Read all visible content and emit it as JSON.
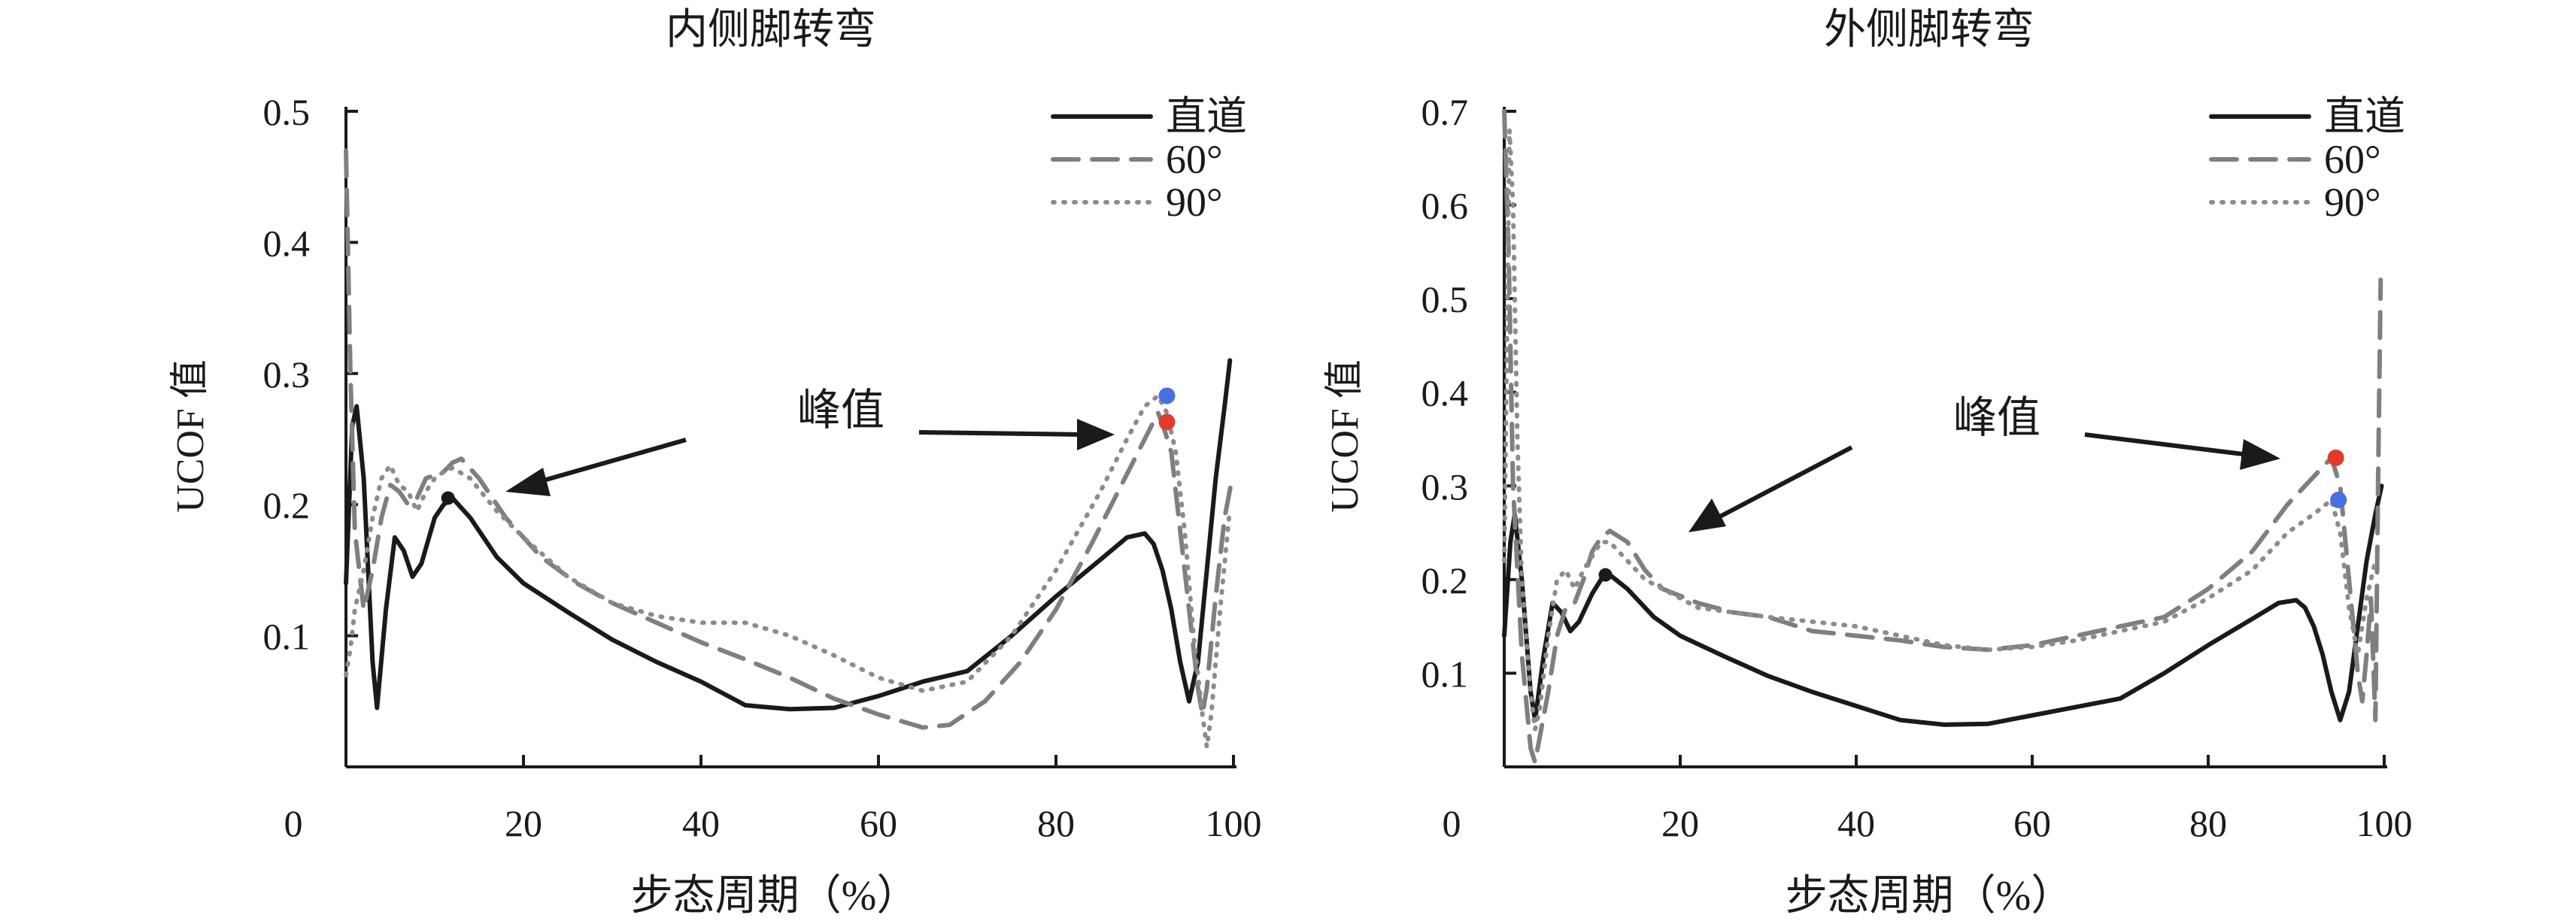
{
  "chart_data": [
    {
      "type": "line",
      "title": "内侧脚转弯",
      "xlabel": "步态周期（%）",
      "ylabel": "UCOF 值",
      "xlim": [
        0,
        100
      ],
      "ylim": [
        0,
        0.5
      ],
      "x_ticks": [
        "0",
        "20",
        "40",
        "60",
        "80",
        "100"
      ],
      "y_ticks": [
        "0.1",
        "0.2",
        "0.3",
        "0.4",
        "0.5"
      ],
      "legend_position": "top-right",
      "annotation": "峰值",
      "series": [
        {
          "name": "直道",
          "style": "solid",
          "color": "#1a1a1a",
          "points": [
            [
              0,
              0.14
            ],
            [
              0.7,
              0.26
            ],
            [
              1.2,
              0.275
            ],
            [
              2,
              0.22
            ],
            [
              3,
              0.08
            ],
            [
              3.5,
              0.045
            ],
            [
              4.5,
              0.12
            ],
            [
              5.5,
              0.175
            ],
            [
              6.5,
              0.165
            ],
            [
              7.5,
              0.145
            ],
            [
              8.5,
              0.155
            ],
            [
              10,
              0.19
            ],
            [
              11,
              0.2
            ],
            [
              12,
              0.205
            ],
            [
              14,
              0.19
            ],
            [
              17,
              0.16
            ],
            [
              20,
              0.14
            ],
            [
              25,
              0.118
            ],
            [
              30,
              0.097
            ],
            [
              35,
              0.08
            ],
            [
              40,
              0.065
            ],
            [
              45,
              0.047
            ],
            [
              50,
              0.044
            ],
            [
              55,
              0.045
            ],
            [
              60,
              0.054
            ],
            [
              65,
              0.065
            ],
            [
              70,
              0.073
            ],
            [
              75,
              0.1
            ],
            [
              80,
              0.13
            ],
            [
              85,
              0.158
            ],
            [
              88,
              0.175
            ],
            [
              90,
              0.178
            ],
            [
              91,
              0.17
            ],
            [
              92,
              0.15
            ],
            [
              93,
              0.12
            ],
            [
              94,
              0.08
            ],
            [
              95,
              0.05
            ],
            [
              96,
              0.08
            ],
            [
              97,
              0.15
            ],
            [
              98,
              0.22
            ],
            [
              99,
              0.275
            ],
            [
              99.6,
              0.31
            ]
          ]
        },
        {
          "name": "60°",
          "style": "dashed",
          "color": "#7f7f7f",
          "points": [
            [
              0,
              0.47
            ],
            [
              0.5,
              0.3
            ],
            [
              1,
              0.18
            ],
            [
              2,
              0.12
            ],
            [
              3,
              0.15
            ],
            [
              4,
              0.19
            ],
            [
              5,
              0.215
            ],
            [
              6,
              0.21
            ],
            [
              7,
              0.2
            ],
            [
              8,
              0.205
            ],
            [
              9,
              0.22
            ],
            [
              11,
              0.225
            ],
            [
              12,
              0.232
            ],
            [
              13,
              0.235
            ],
            [
              15,
              0.22
            ],
            [
              18,
              0.19
            ],
            [
              22,
              0.16
            ],
            [
              26,
              0.14
            ],
            [
              30,
              0.125
            ],
            [
              35,
              0.11
            ],
            [
              40,
              0.095
            ],
            [
              45,
              0.082
            ],
            [
              50,
              0.068
            ],
            [
              55,
              0.052
            ],
            [
              60,
              0.04
            ],
            [
              65,
              0.03
            ],
            [
              68,
              0.032
            ],
            [
              72,
              0.05
            ],
            [
              76,
              0.08
            ],
            [
              80,
              0.12
            ],
            [
              84,
              0.17
            ],
            [
              87,
              0.21
            ],
            [
              90,
              0.25
            ],
            [
              91.5,
              0.27
            ],
            [
              92,
              0.262
            ],
            [
              93,
              0.24
            ],
            [
              94,
              0.18
            ],
            [
              95,
              0.12
            ],
            [
              96,
              0.06
            ],
            [
              96.5,
              0.04
            ],
            [
              97,
              0.06
            ],
            [
              98,
              0.13
            ],
            [
              99,
              0.19
            ],
            [
              99.7,
              0.215
            ]
          ]
        },
        {
          "name": "90°",
          "style": "dotted",
          "color": "#8c8c8c",
          "points": [
            [
              0,
              0.07
            ],
            [
              0.5,
              0.09
            ],
            [
              1,
              0.12
            ],
            [
              2,
              0.15
            ],
            [
              3,
              0.19
            ],
            [
              4,
              0.22
            ],
            [
              5,
              0.23
            ],
            [
              6,
              0.215
            ],
            [
              7,
              0.21
            ],
            [
              8,
              0.195
            ],
            [
              9,
              0.21
            ],
            [
              10,
              0.22
            ],
            [
              11,
              0.225
            ],
            [
              12,
              0.228
            ],
            [
              14,
              0.22
            ],
            [
              17,
              0.195
            ],
            [
              20,
              0.175
            ],
            [
              25,
              0.145
            ],
            [
              30,
              0.125
            ],
            [
              35,
              0.115
            ],
            [
              40,
              0.11
            ],
            [
              45,
              0.11
            ],
            [
              50,
              0.1
            ],
            [
              55,
              0.085
            ],
            [
              60,
              0.068
            ],
            [
              65,
              0.058
            ],
            [
              70,
              0.065
            ],
            [
              75,
              0.1
            ],
            [
              80,
              0.15
            ],
            [
              85,
              0.21
            ],
            [
              88,
              0.25
            ],
            [
              90,
              0.275
            ],
            [
              91.5,
              0.283
            ],
            [
              92.5,
              0.27
            ],
            [
              93.5,
              0.24
            ],
            [
              94.5,
              0.18
            ],
            [
              95.5,
              0.1
            ],
            [
              96.5,
              0.04
            ],
            [
              97,
              0.015
            ],
            [
              97.5,
              0.04
            ],
            [
              98.5,
              0.12
            ],
            [
              99.5,
              0.19
            ]
          ]
        }
      ],
      "peak_markers": [
        {
          "x": 92.5,
          "y": 0.283,
          "color": "#4a6fe3"
        },
        {
          "x": 92.5,
          "y": 0.263,
          "color": "#e23b2b"
        }
      ],
      "point_markers": [
        {
          "x": 11.5,
          "y": 0.205,
          "color": "#1a1a1a"
        }
      ]
    },
    {
      "type": "line",
      "title": "外侧脚转弯",
      "xlabel": "步态周期（%）",
      "ylabel": "UCOF 值",
      "xlim": [
        0,
        100
      ],
      "ylim": [
        0,
        0.7
      ],
      "x_ticks": [
        "0",
        "20",
        "40",
        "60",
        "80",
        "100"
      ],
      "y_ticks": [
        "0.1",
        "0.2",
        "0.3",
        "0.4",
        "0.5",
        "0.6",
        "0.7"
      ],
      "legend_position": "top-right",
      "annotation": "峰值",
      "series": [
        {
          "name": "直道",
          "style": "solid",
          "color": "#1a1a1a",
          "points": [
            [
              0,
              0.14
            ],
            [
              0.7,
              0.24
            ],
            [
              1.2,
              0.27
            ],
            [
              2,
              0.2
            ],
            [
              3,
              0.08
            ],
            [
              3.5,
              0.05
            ],
            [
              4.5,
              0.12
            ],
            [
              5.5,
              0.175
            ],
            [
              6.5,
              0.165
            ],
            [
              7.5,
              0.145
            ],
            [
              8.5,
              0.155
            ],
            [
              10,
              0.185
            ],
            [
              11,
              0.2
            ],
            [
              12,
              0.205
            ],
            [
              14,
              0.19
            ],
            [
              17,
              0.16
            ],
            [
              20,
              0.14
            ],
            [
              25,
              0.118
            ],
            [
              30,
              0.097
            ],
            [
              35,
              0.08
            ],
            [
              40,
              0.065
            ],
            [
              45,
              0.05
            ],
            [
              50,
              0.045
            ],
            [
              55,
              0.046
            ],
            [
              60,
              0.055
            ],
            [
              65,
              0.064
            ],
            [
              70,
              0.073
            ],
            [
              75,
              0.1
            ],
            [
              80,
              0.13
            ],
            [
              85,
              0.158
            ],
            [
              88,
              0.175
            ],
            [
              90,
              0.178
            ],
            [
              91,
              0.17
            ],
            [
              92,
              0.15
            ],
            [
              93,
              0.12
            ],
            [
              94,
              0.08
            ],
            [
              95,
              0.05
            ],
            [
              96,
              0.08
            ],
            [
              97,
              0.15
            ],
            [
              98,
              0.22
            ],
            [
              99,
              0.27
            ],
            [
              99.7,
              0.3
            ]
          ]
        },
        {
          "name": "60°",
          "style": "dashed",
          "color": "#7f7f7f",
          "points": [
            [
              0,
              0.7
            ],
            [
              0.5,
              0.55
            ],
            [
              1,
              0.3
            ],
            [
              2,
              0.12
            ],
            [
              3,
              0.02
            ],
            [
              3.5,
              0.005
            ],
            [
              4,
              0.03
            ],
            [
              5,
              0.08
            ],
            [
              6,
              0.14
            ],
            [
              7,
              0.17
            ],
            [
              8,
              0.175
            ],
            [
              9,
              0.2
            ],
            [
              10,
              0.23
            ],
            [
              11,
              0.245
            ],
            [
              12,
              0.252
            ],
            [
              14,
              0.24
            ],
            [
              16,
              0.21
            ],
            [
              18,
              0.19
            ],
            [
              22,
              0.175
            ],
            [
              26,
              0.165
            ],
            [
              30,
              0.16
            ],
            [
              35,
              0.145
            ],
            [
              40,
              0.14
            ],
            [
              45,
              0.135
            ],
            [
              50,
              0.128
            ],
            [
              55,
              0.125
            ],
            [
              60,
              0.13
            ],
            [
              65,
              0.14
            ],
            [
              70,
              0.15
            ],
            [
              75,
              0.16
            ],
            [
              80,
              0.19
            ],
            [
              85,
              0.23
            ],
            [
              89,
              0.28
            ],
            [
              92,
              0.31
            ],
            [
              94,
              0.33
            ],
            [
              95,
              0.3
            ],
            [
              96,
              0.2
            ],
            [
              97,
              0.1
            ],
            [
              97.5,
              0.07
            ],
            [
              98,
              0.12
            ],
            [
              98.5,
              0.18
            ],
            [
              99,
              0.05
            ],
            [
              99.3,
              0.3
            ],
            [
              99.6,
              0.52
            ]
          ]
        },
        {
          "name": "90°",
          "style": "dotted",
          "color": "#8c8c8c",
          "points": [
            [
              0,
              0.22
            ],
            [
              0.3,
              0.45
            ],
            [
              0.6,
              0.68
            ],
            [
              1,
              0.6
            ],
            [
              1.5,
              0.35
            ],
            [
              2,
              0.2
            ],
            [
              3,
              0.08
            ],
            [
              3.5,
              0.04
            ],
            [
              4,
              0.06
            ],
            [
              5,
              0.14
            ],
            [
              6,
              0.2
            ],
            [
              7,
              0.21
            ],
            [
              8,
              0.19
            ],
            [
              9,
              0.21
            ],
            [
              10,
              0.225
            ],
            [
              11,
              0.24
            ],
            [
              12,
              0.24
            ],
            [
              14,
              0.22
            ],
            [
              16,
              0.2
            ],
            [
              18,
              0.19
            ],
            [
              22,
              0.17
            ],
            [
              26,
              0.165
            ],
            [
              30,
              0.16
            ],
            [
              35,
              0.155
            ],
            [
              40,
              0.15
            ],
            [
              45,
              0.14
            ],
            [
              50,
              0.13
            ],
            [
              55,
              0.125
            ],
            [
              60,
              0.128
            ],
            [
              65,
              0.135
            ],
            [
              70,
              0.145
            ],
            [
              75,
              0.155
            ],
            [
              80,
              0.18
            ],
            [
              85,
              0.21
            ],
            [
              89,
              0.25
            ],
            [
              92,
              0.27
            ],
            [
              94,
              0.285
            ],
            [
              95,
              0.25
            ],
            [
              96,
              0.17
            ],
            [
              97,
              0.12
            ],
            [
              98,
              0.18
            ],
            [
              99,
              0.22
            ]
          ]
        }
      ],
      "peak_markers": [
        {
          "x": 94.5,
          "y": 0.33,
          "color": "#e23b2b"
        },
        {
          "x": 94.8,
          "y": 0.285,
          "color": "#4a6fe3"
        }
      ],
      "point_markers": [
        {
          "x": 11.5,
          "y": 0.205,
          "color": "#1a1a1a"
        }
      ]
    }
  ]
}
